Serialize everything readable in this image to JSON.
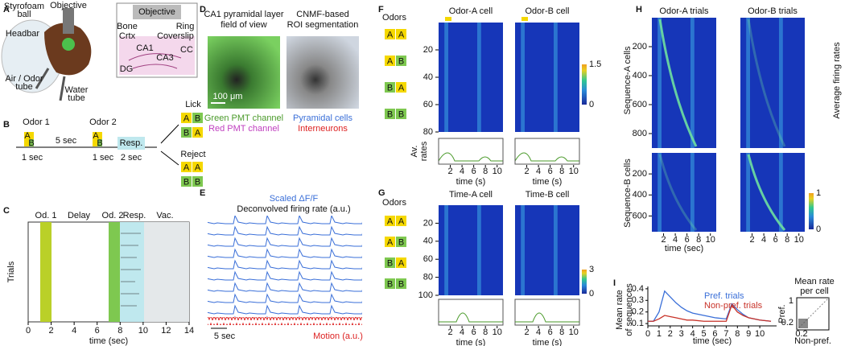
{
  "odors": {
    "a": "A",
    "b": "B"
  },
  "panels": {
    "a": {
      "letter": "A",
      "styrofoam": [
        "Styrofoam",
        "ball"
      ],
      "objective": "Objective",
      "headbar": "Headbar",
      "air_odor": [
        "Air / Odor",
        "tube"
      ],
      "water": [
        "Water",
        "tube"
      ],
      "inset_objective": "Objective",
      "bone": "Bone",
      "ring": "Ring",
      "crtx": "Crtx",
      "coverslip": "Coverslip",
      "ca1": "CA1",
      "cc": "CC",
      "dg": "DG",
      "ca3": "CA3"
    },
    "b": {
      "letter": "B",
      "odor1": "Odor 1",
      "odor2": "Odor 2",
      "delay": "5 sec",
      "resp": "Resp.",
      "odor_dur1": "1 sec",
      "odor_dur2": "1 sec",
      "resp_dur": "2 sec",
      "lick": "Lick",
      "reject": "Reject"
    },
    "c": {
      "letter": "C",
      "od1": "Od. 1",
      "delay": "Delay",
      "od2": "Od. 2",
      "resp": "Resp.",
      "vac": "Vac.",
      "ylabel": "Trials",
      "xlabel": "time (sec)",
      "xticks": [
        0,
        2,
        4,
        6,
        8,
        10,
        12,
        14
      ]
    },
    "d": {
      "letter": "D",
      "title1": [
        "CA1 pyramidal layer",
        "field of view"
      ],
      "title2": [
        "CNMF-based",
        "ROI segmentation"
      ],
      "scale": "100 μm",
      "green": "Green PMT channel",
      "red": "Red PMT channel",
      "pyr": "Pyramidal cells",
      "inter": "Interneurons"
    },
    "e": {
      "letter": "E",
      "dff": "Scaled ΔF/F",
      "decon": "Deconvolved firing rate (a.u.)",
      "scale": "5 sec",
      "motion": "Motion (a.u.)"
    },
    "f": {
      "letter": "F",
      "titles": [
        "Odor-A cell",
        "Odor-B cell"
      ],
      "odors": "Odors",
      "yticks": [
        20,
        40,
        60,
        80
      ],
      "colorbar": [
        1.5,
        0
      ],
      "rates": [
        "Av.",
        "rates"
      ],
      "xticks": [
        2,
        4,
        6,
        8,
        10
      ],
      "xlabel": "time (s)"
    },
    "g": {
      "letter": "G",
      "titles": [
        "Time-A cell",
        "Time-B cell"
      ],
      "odors": "Odors",
      "yticks": [
        20,
        40,
        60,
        80,
        100
      ],
      "colorbar": [
        3,
        0
      ],
      "xticks": [
        2,
        4,
        6,
        8,
        10
      ],
      "xlabel": "time (s)"
    },
    "h": {
      "letter": "H",
      "titles": [
        "Odor-A trials",
        "Odor-B trials"
      ],
      "ylabels": [
        "Sequence-A cells",
        "Sequence-B cells"
      ],
      "yticks_a": [
        200,
        400,
        600,
        800
      ],
      "yticks_b": [
        200,
        400,
        600
      ],
      "colorbar": [
        1,
        0
      ],
      "side": "Average firing rates",
      "xticks": [
        2,
        4,
        6,
        8,
        10
      ],
      "xlabel": "time (sec)"
    },
    "i": {
      "letter": "I",
      "ylabel": [
        "Mean rate",
        "of sequences"
      ],
      "inset_title": [
        "Mean rate",
        "per cell"
      ],
      "inset_y": "Pref.",
      "inset_x": "Non-pref.",
      "inset_yticks": [
        1,
        0.2
      ],
      "inset_xticks": [
        0.2
      ]
    }
  },
  "chart_data": {
    "type": "line",
    "xlabel": "time (sec)",
    "x": [
      0,
      0.5,
      1,
      1.5,
      2,
      2.5,
      3,
      3.5,
      4,
      5,
      6,
      7,
      7.5,
      8,
      8.5,
      9,
      10,
      11
    ],
    "series": [
      {
        "name": "Pref. trials",
        "color": "#3a6fd8",
        "values": [
          0.12,
          0.12,
          0.2,
          0.38,
          0.33,
          0.28,
          0.24,
          0.21,
          0.19,
          0.17,
          0.15,
          0.14,
          0.27,
          0.22,
          0.18,
          0.15,
          0.13,
          0.12
        ]
      },
      {
        "name": "Non-pref. trials",
        "color": "#c83228",
        "values": [
          0.12,
          0.12,
          0.14,
          0.17,
          0.16,
          0.15,
          0.14,
          0.13,
          0.13,
          0.12,
          0.12,
          0.12,
          0.26,
          0.2,
          0.17,
          0.15,
          0.13,
          0.12
        ]
      }
    ],
    "xlim": [
      0,
      11.5
    ],
    "ylim": [
      0.08,
      0.42
    ],
    "xticks": [
      0,
      1,
      2,
      3,
      4,
      5,
      6,
      7,
      8,
      9,
      10
    ],
    "yticks": [
      0.1,
      0.2,
      0.3,
      0.4
    ]
  }
}
